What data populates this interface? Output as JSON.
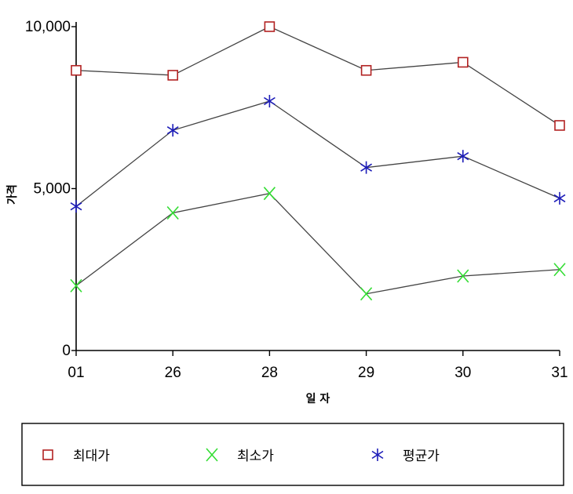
{
  "chart_data": {
    "type": "line",
    "title": "",
    "xlabel": "일 자",
    "ylabel": "가격",
    "categories": [
      "01",
      "26",
      "28",
      "29",
      "30",
      "31"
    ],
    "ylim": [
      0,
      10000
    ],
    "yticks": [
      0,
      5000,
      10000
    ],
    "ytick_labels": [
      "0",
      "5,000",
      "10,000"
    ],
    "grid": false,
    "legend_position": "bottom",
    "series": [
      {
        "name": "최대가",
        "marker": "square",
        "color": "#b22222",
        "values": [
          8650,
          8500,
          10000,
          8650,
          8900,
          6950
        ]
      },
      {
        "name": "최소가",
        "marker": "x",
        "color": "#33dd33",
        "values": [
          2000,
          4250,
          4850,
          1750,
          2300,
          2500
        ]
      },
      {
        "name": "평균가",
        "marker": "asterisk",
        "color": "#1c1cb8",
        "values": [
          4450,
          6800,
          7700,
          5650,
          6000,
          4700
        ]
      }
    ],
    "line_color": "#444444"
  }
}
